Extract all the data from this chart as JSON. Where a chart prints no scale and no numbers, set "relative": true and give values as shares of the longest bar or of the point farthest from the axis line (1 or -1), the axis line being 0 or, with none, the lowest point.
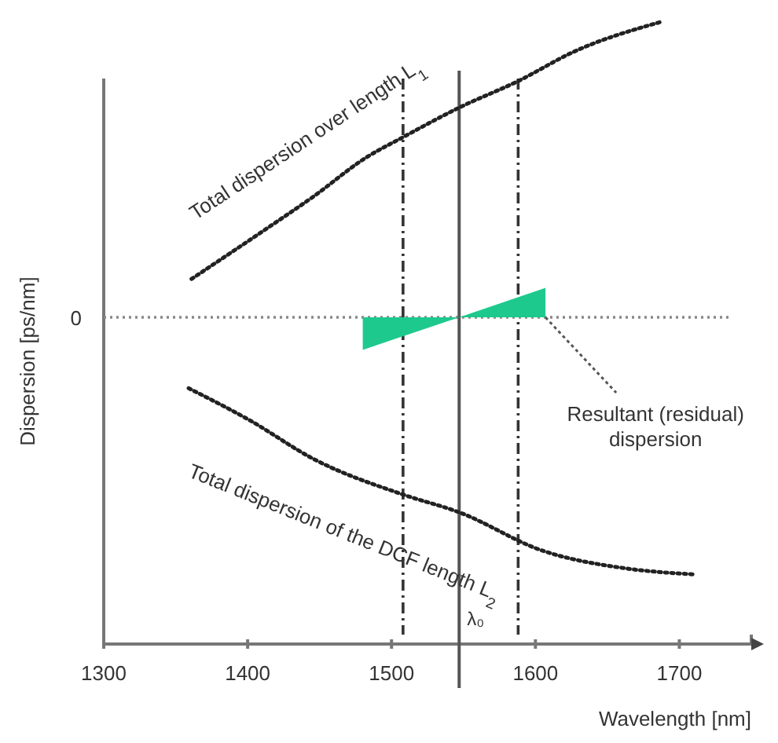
{
  "chart_data": {
    "type": "line",
    "relative": true,
    "xlabel": "Wavelength [nm]",
    "ylabel": "Dispersion  [ps/nm]",
    "xlim": [
      1300,
      1750
    ],
    "xticks": [
      1300,
      1400,
      1500,
      1600,
      1700
    ],
    "line_style": "dotted",
    "series": [
      {
        "name": "Total dispersion over length L$_{1}$",
        "color": "#222222",
        "x": [
          1361,
          1410,
          1446,
          1482,
          1508,
          1547,
          1588,
          1627,
          1687
        ],
        "values": [
          0.13,
          0.29,
          0.41,
          0.54,
          0.61,
          0.71,
          0.8,
          0.9,
          1.0
        ]
      },
      {
        "name": "Total dispersion of the DCF length L$_{2}$",
        "color": "#222222",
        "x": [
          1359,
          1402,
          1446,
          1508,
          1547,
          1605,
          1663,
          1710
        ],
        "values": [
          -0.24,
          -0.35,
          -0.48,
          -0.6,
          -0.66,
          -0.79,
          -0.85,
          -0.87
        ]
      },
      {
        "type": "area",
        "color": "#1ec98e",
        "x": [
          1480,
          1547,
          1607
        ],
        "values": [
          -0.11,
          0,
          0.1
        ]
      }
    ],
    "ref_lines": [
      {
        "axis": "y",
        "value": 0,
        "label": "0",
        "line_style": "dotted",
        "color": "#888888"
      },
      {
        "axis": "x",
        "value": 1508,
        "line_style": "dashed",
        "color": "#333333"
      },
      {
        "axis": "x",
        "value": 1547,
        "label": "λ₀",
        "line_style": "solid",
        "color": "#555555"
      },
      {
        "axis": "x",
        "value": 1588,
        "line_style": "dashed",
        "color": "#333333"
      }
    ],
    "annotations": [
      {
        "text": "Resultant (residual) dispersion",
        "x": 1607,
        "y": 0
      }
    ]
  }
}
